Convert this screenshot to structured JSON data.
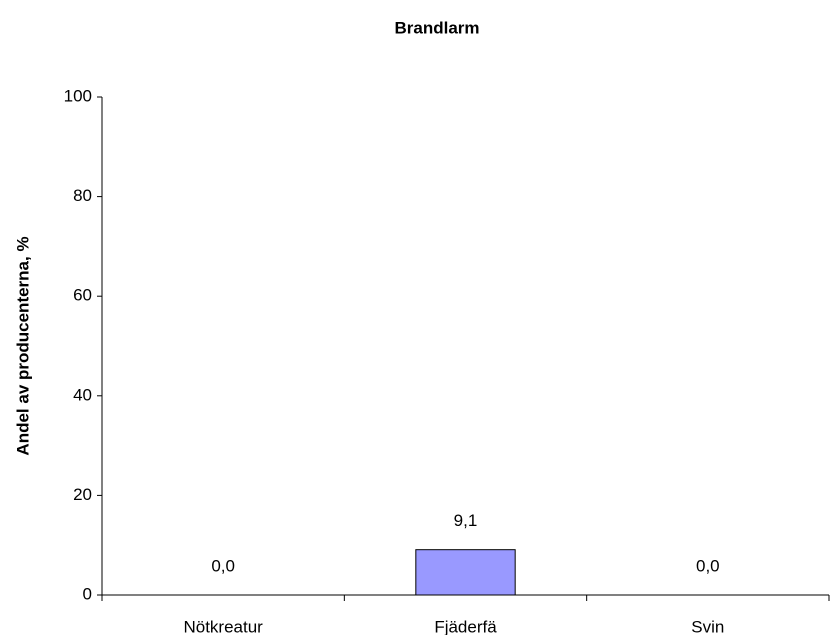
{
  "chart_data": {
    "type": "bar",
    "title": "Brandlarm",
    "y_label": "Andel av producenterna, %",
    "categories": [
      "Nötkreatur",
      "Fjäderfä",
      "Svin"
    ],
    "values": [
      0,
      9.1,
      0
    ],
    "value_labels": [
      "0,0",
      "9,1",
      "0,0"
    ],
    "color": "#9999ff",
    "ylim": [
      0,
      100
    ],
    "yticks": [
      0,
      20,
      40,
      60,
      80,
      100
    ],
    "grid": false
  }
}
